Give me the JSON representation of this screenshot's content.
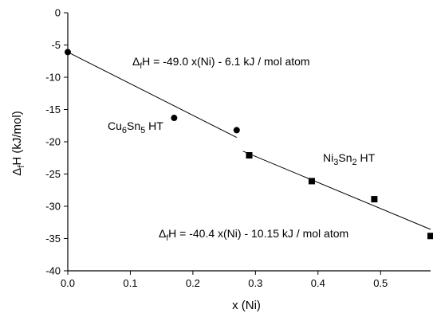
{
  "chart_data": {
    "type": "scatter",
    "xlabel": "x (Ni)",
    "ylabel": "ΔfH (kJ/mol)",
    "ylabel_parts": {
      "delta": "Δ",
      "sub": "f",
      "rest": "H (kJ/mol)"
    },
    "xlim": [
      0,
      0.58
    ],
    "ylim": [
      -40,
      0
    ],
    "x_ticks": [
      0,
      0.1,
      0.2,
      0.3,
      0.4,
      0.5
    ],
    "x_tick_labels": [
      "0.0",
      "0.1",
      "0.2",
      "0.3",
      "0.4",
      "0.5"
    ],
    "y_ticks": [
      0,
      -5,
      -10,
      -15,
      -20,
      -25,
      -30,
      -35,
      -40
    ],
    "y_tick_labels": [
      "0",
      "-5",
      "-10",
      "-15",
      "-20",
      "-25",
      "-30",
      "-35",
      "-40"
    ],
    "grid": false,
    "series": [
      {
        "name": "Cu6Sn5 HT",
        "marker": "circle",
        "x": [
          0.0,
          0.17,
          0.27
        ],
        "y": [
          -6.1,
          -16.3,
          -18.2
        ],
        "fit": {
          "slope": -49.0,
          "intercept": -6.1,
          "x_range": [
            0.0,
            0.27
          ]
        }
      },
      {
        "name": "Ni3Sn2 HT",
        "marker": "square",
        "x": [
          0.29,
          0.39,
          0.49,
          0.58
        ],
        "y": [
          -22.1,
          -26.1,
          -28.9,
          -34.6
        ],
        "fit": {
          "slope": -40.4,
          "intercept": -10.15,
          "x_range": [
            0.28,
            0.58
          ]
        }
      }
    ],
    "annotations": [
      {
        "id": "eq-cu",
        "delta": "Δ",
        "sub": "f",
        "text": "H = -49.0 x(Ni) - 6.1  kJ / mol atom"
      },
      {
        "id": "eq-ni",
        "delta": "Δ",
        "sub": "f",
        "text": "H = -40.4 x(Ni) - 10.15  kJ / mol atom"
      },
      {
        "id": "label-cu",
        "main": "Cu",
        "sub1": "6",
        "mid": "Sn",
        "sub2": "5",
        "tail": " HT"
      },
      {
        "id": "label-ni",
        "main": "Ni",
        "sub1": "3",
        "mid": "Sn",
        "sub2": "2",
        "tail": " HT"
      }
    ]
  }
}
